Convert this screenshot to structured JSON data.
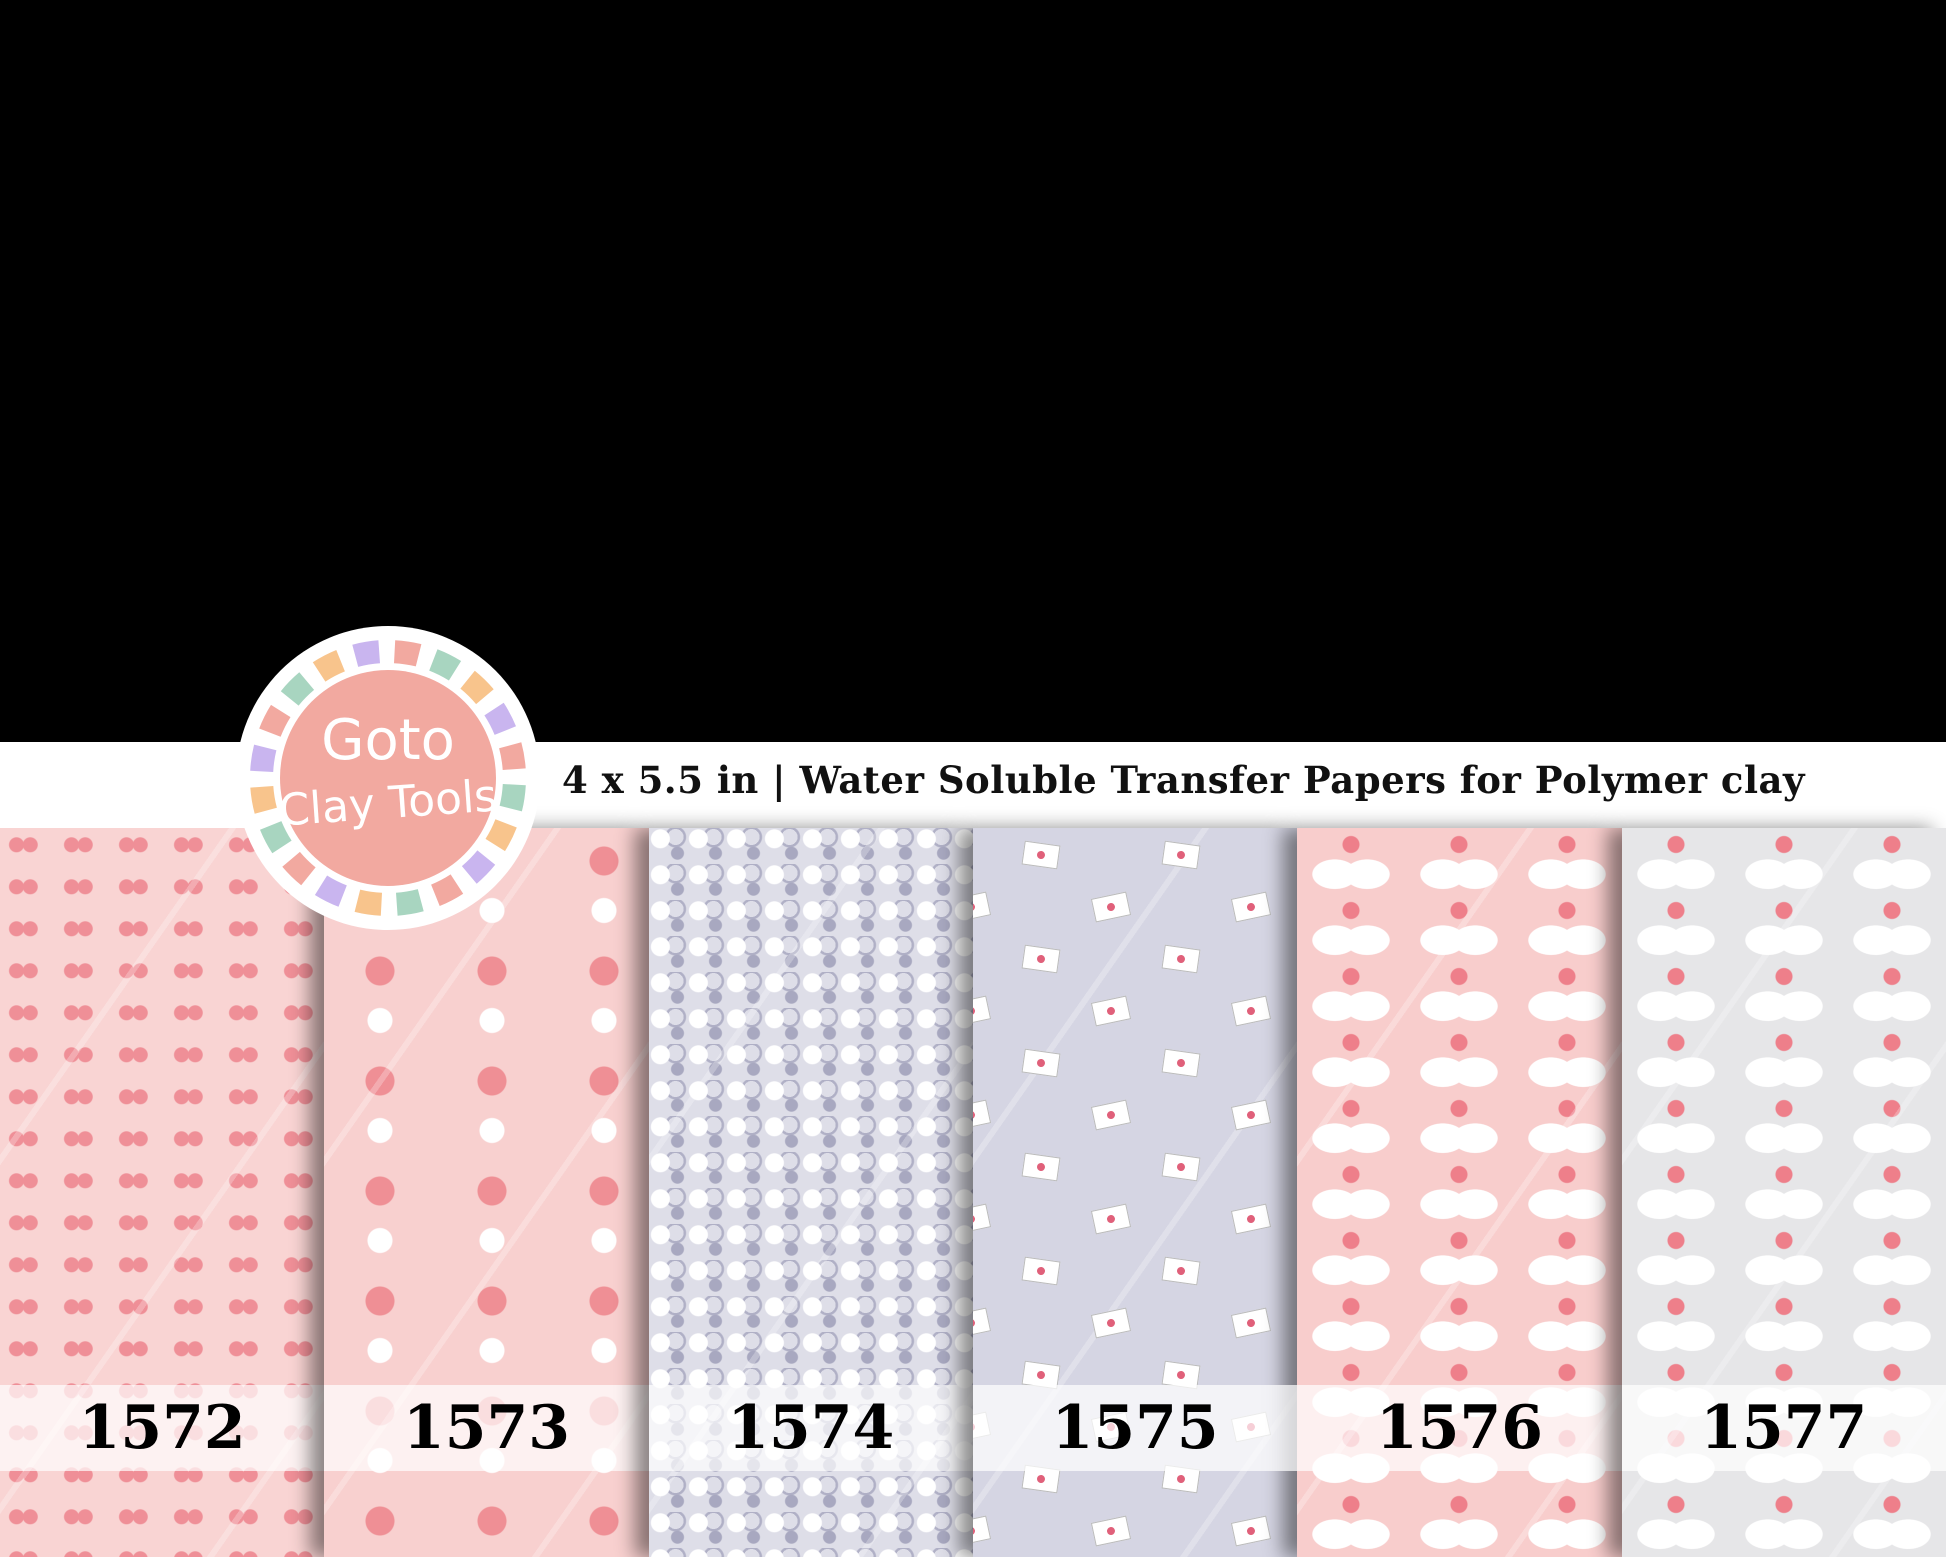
{
  "header": {
    "title": "4 x 5.5 in | Water Soluble Transfer Papers for Polymer clay"
  },
  "logo": {
    "line1": "Goto",
    "line2": "Clay Tools",
    "colors": {
      "circle": "#f2a9a0",
      "segments": [
        "#a8d5c0",
        "#f8c48c",
        "#c9b5ef",
        "#f2a9a0"
      ]
    }
  },
  "papers": [
    {
      "number": "1572",
      "pattern": "winged-hearts",
      "color": "#f9d4d3"
    },
    {
      "number": "1573",
      "pattern": "heart-balloons",
      "color": "#f8d0cf"
    },
    {
      "number": "1574",
      "pattern": "outline-hearts",
      "color": "#dedee8"
    },
    {
      "number": "1575",
      "pattern": "love-letters",
      "color": "#d5d5e3"
    },
    {
      "number": "1576",
      "pattern": "swans-hearts",
      "color": "#f8cdcc"
    },
    {
      "number": "1577",
      "pattern": "swans-hearts",
      "color": "#e6e6e8"
    }
  ]
}
